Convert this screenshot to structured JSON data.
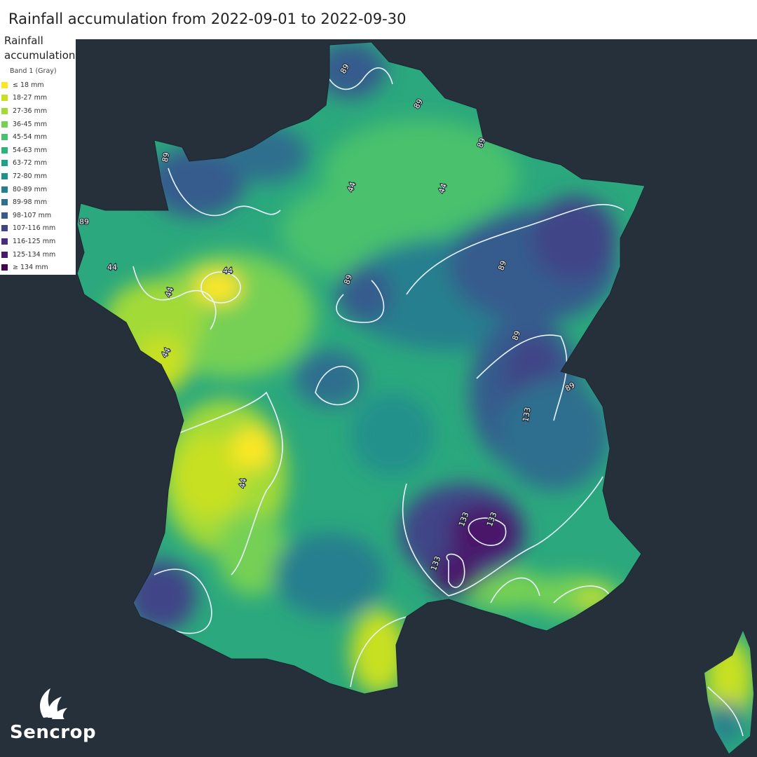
{
  "title": "Rainfall accumulation from 2022-09-01 to 2022-09-30",
  "legend": {
    "title": "Rainfall accumulation",
    "band": "Band 1 (Gray)",
    "items": [
      {
        "label": "≤ 18 mm",
        "color": "#fde725"
      },
      {
        "label": "18-27 mm",
        "color": "#c8e020"
      },
      {
        "label": "27-36 mm",
        "color": "#a2da37"
      },
      {
        "label": "36-45 mm",
        "color": "#75d054"
      },
      {
        "label": "45-54 mm",
        "color": "#4ac16d"
      },
      {
        "label": "54-63 mm",
        "color": "#2db27d"
      },
      {
        "label": "63-72 mm",
        "color": "#1fa187"
      },
      {
        "label": "72-80 mm",
        "color": "#21918c"
      },
      {
        "label": "80-89 mm",
        "color": "#277f8e"
      },
      {
        "label": "89-98 mm",
        "color": "#2e6e8e"
      },
      {
        "label": "98-107 mm",
        "color": "#365c8d"
      },
      {
        "label": "107-116 mm",
        "color": "#414487"
      },
      {
        "label": "116-125 mm",
        "color": "#472d7b"
      },
      {
        "label": "125-134 mm",
        "color": "#48186a"
      },
      {
        "label": "≥ 134 mm",
        "color": "#440154"
      }
    ]
  },
  "contour_labels": [
    "44",
    "44",
    "44",
    "44",
    "44",
    "44",
    "44",
    "89",
    "89",
    "89",
    "89",
    "89",
    "89",
    "89",
    "89",
    "89",
    "133",
    "133",
    "133",
    "133"
  ],
  "brand": {
    "name": "Sencrop"
  },
  "colors": {
    "ocean": "#25303a",
    "contour": "#e8f5ff"
  }
}
